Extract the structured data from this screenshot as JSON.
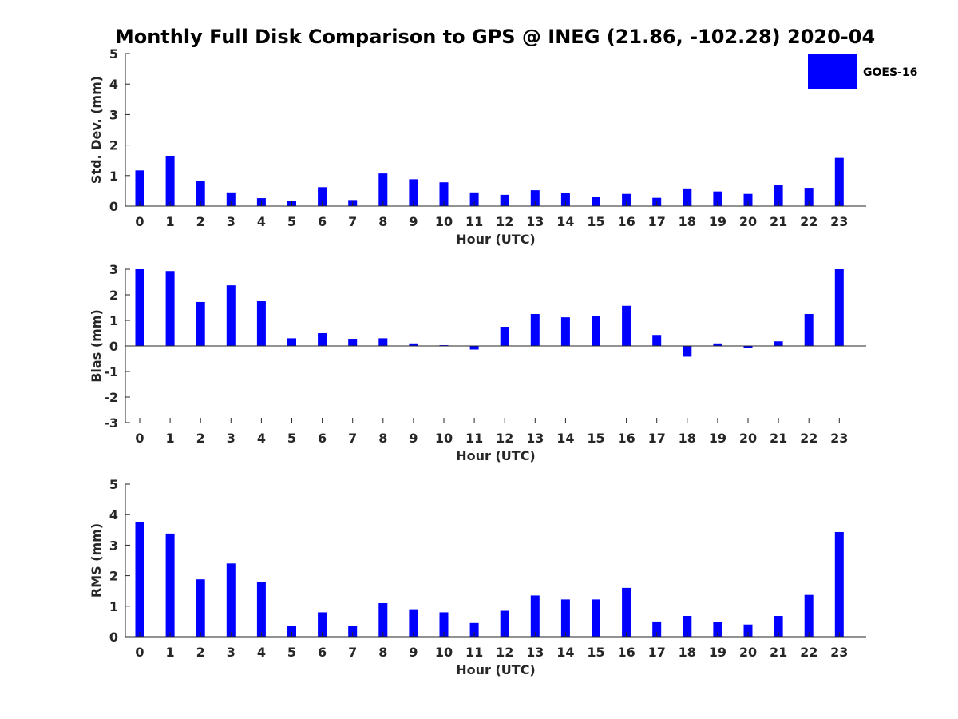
{
  "chart_data": [
    {
      "type": "bar",
      "categories": [
        "0",
        "1",
        "2",
        "3",
        "4",
        "5",
        "6",
        "7",
        "8",
        "9",
        "10",
        "11",
        "12",
        "13",
        "14",
        "15",
        "16",
        "17",
        "18",
        "19",
        "20",
        "21",
        "22",
        "23"
      ],
      "series": [
        {
          "name": "GOES-16",
          "values": [
            1.17,
            1.65,
            0.83,
            0.45,
            0.26,
            0.17,
            0.62,
            0.2,
            1.07,
            0.88,
            0.78,
            0.45,
            0.37,
            0.52,
            0.42,
            0.3,
            0.4,
            0.27,
            0.58,
            0.48,
            0.4,
            0.68,
            0.6,
            1.58
          ]
        }
      ],
      "xlabel": "Hour (UTC)",
      "ylabel": "Std. Dev. (mm)",
      "ylim": [
        0,
        5
      ],
      "yticks": [
        "0",
        "1",
        "2",
        "3",
        "4",
        "5"
      ],
      "color": "#0000ff",
      "grid": false,
      "legend_position": "top-right"
    },
    {
      "type": "bar",
      "categories": [
        "0",
        "1",
        "2",
        "3",
        "4",
        "5",
        "6",
        "7",
        "8",
        "9",
        "10",
        "11",
        "12",
        "13",
        "14",
        "15",
        "16",
        "17",
        "18",
        "19",
        "20",
        "21",
        "22",
        "23"
      ],
      "series": [
        {
          "name": "GOES-16",
          "values": [
            3.0,
            2.93,
            1.72,
            2.37,
            1.75,
            0.3,
            0.5,
            0.28,
            0.3,
            0.1,
            0.03,
            -0.14,
            0.75,
            1.25,
            1.12,
            1.18,
            1.57,
            0.43,
            -0.42,
            0.1,
            -0.08,
            0.18,
            1.25,
            3.0
          ]
        }
      ],
      "xlabel": "Hour (UTC)",
      "ylabel": "Bias (mm)",
      "ylim": [
        -3,
        3
      ],
      "yticks": [
        "-3",
        "-2",
        "-1",
        "0",
        "1",
        "2",
        "3"
      ],
      "color": "#0000ff",
      "grid": false
    },
    {
      "type": "bar",
      "categories": [
        "0",
        "1",
        "2",
        "3",
        "4",
        "5",
        "6",
        "7",
        "8",
        "9",
        "10",
        "11",
        "12",
        "13",
        "14",
        "15",
        "16",
        "17",
        "18",
        "19",
        "20",
        "21",
        "22",
        "23"
      ],
      "series": [
        {
          "name": "GOES-16",
          "values": [
            3.77,
            3.38,
            1.88,
            2.4,
            1.78,
            0.35,
            0.8,
            0.35,
            1.1,
            0.9,
            0.8,
            0.45,
            0.85,
            1.35,
            1.22,
            1.22,
            1.6,
            0.5,
            0.68,
            0.48,
            0.4,
            0.68,
            1.37,
            3.43
          ]
        }
      ],
      "xlabel": "Hour (UTC)",
      "ylabel": "RMS (mm)",
      "ylim": [
        0,
        5
      ],
      "yticks": [
        "0",
        "1",
        "2",
        "3",
        "4",
        "5"
      ],
      "color": "#0000ff",
      "grid": false
    }
  ],
  "title": "Monthly Full Disk Comparison to GPS @ INEG (21.86, -102.28) 2020-04",
  "legend": {
    "label": "GOES-16",
    "color": "#0000ff"
  }
}
